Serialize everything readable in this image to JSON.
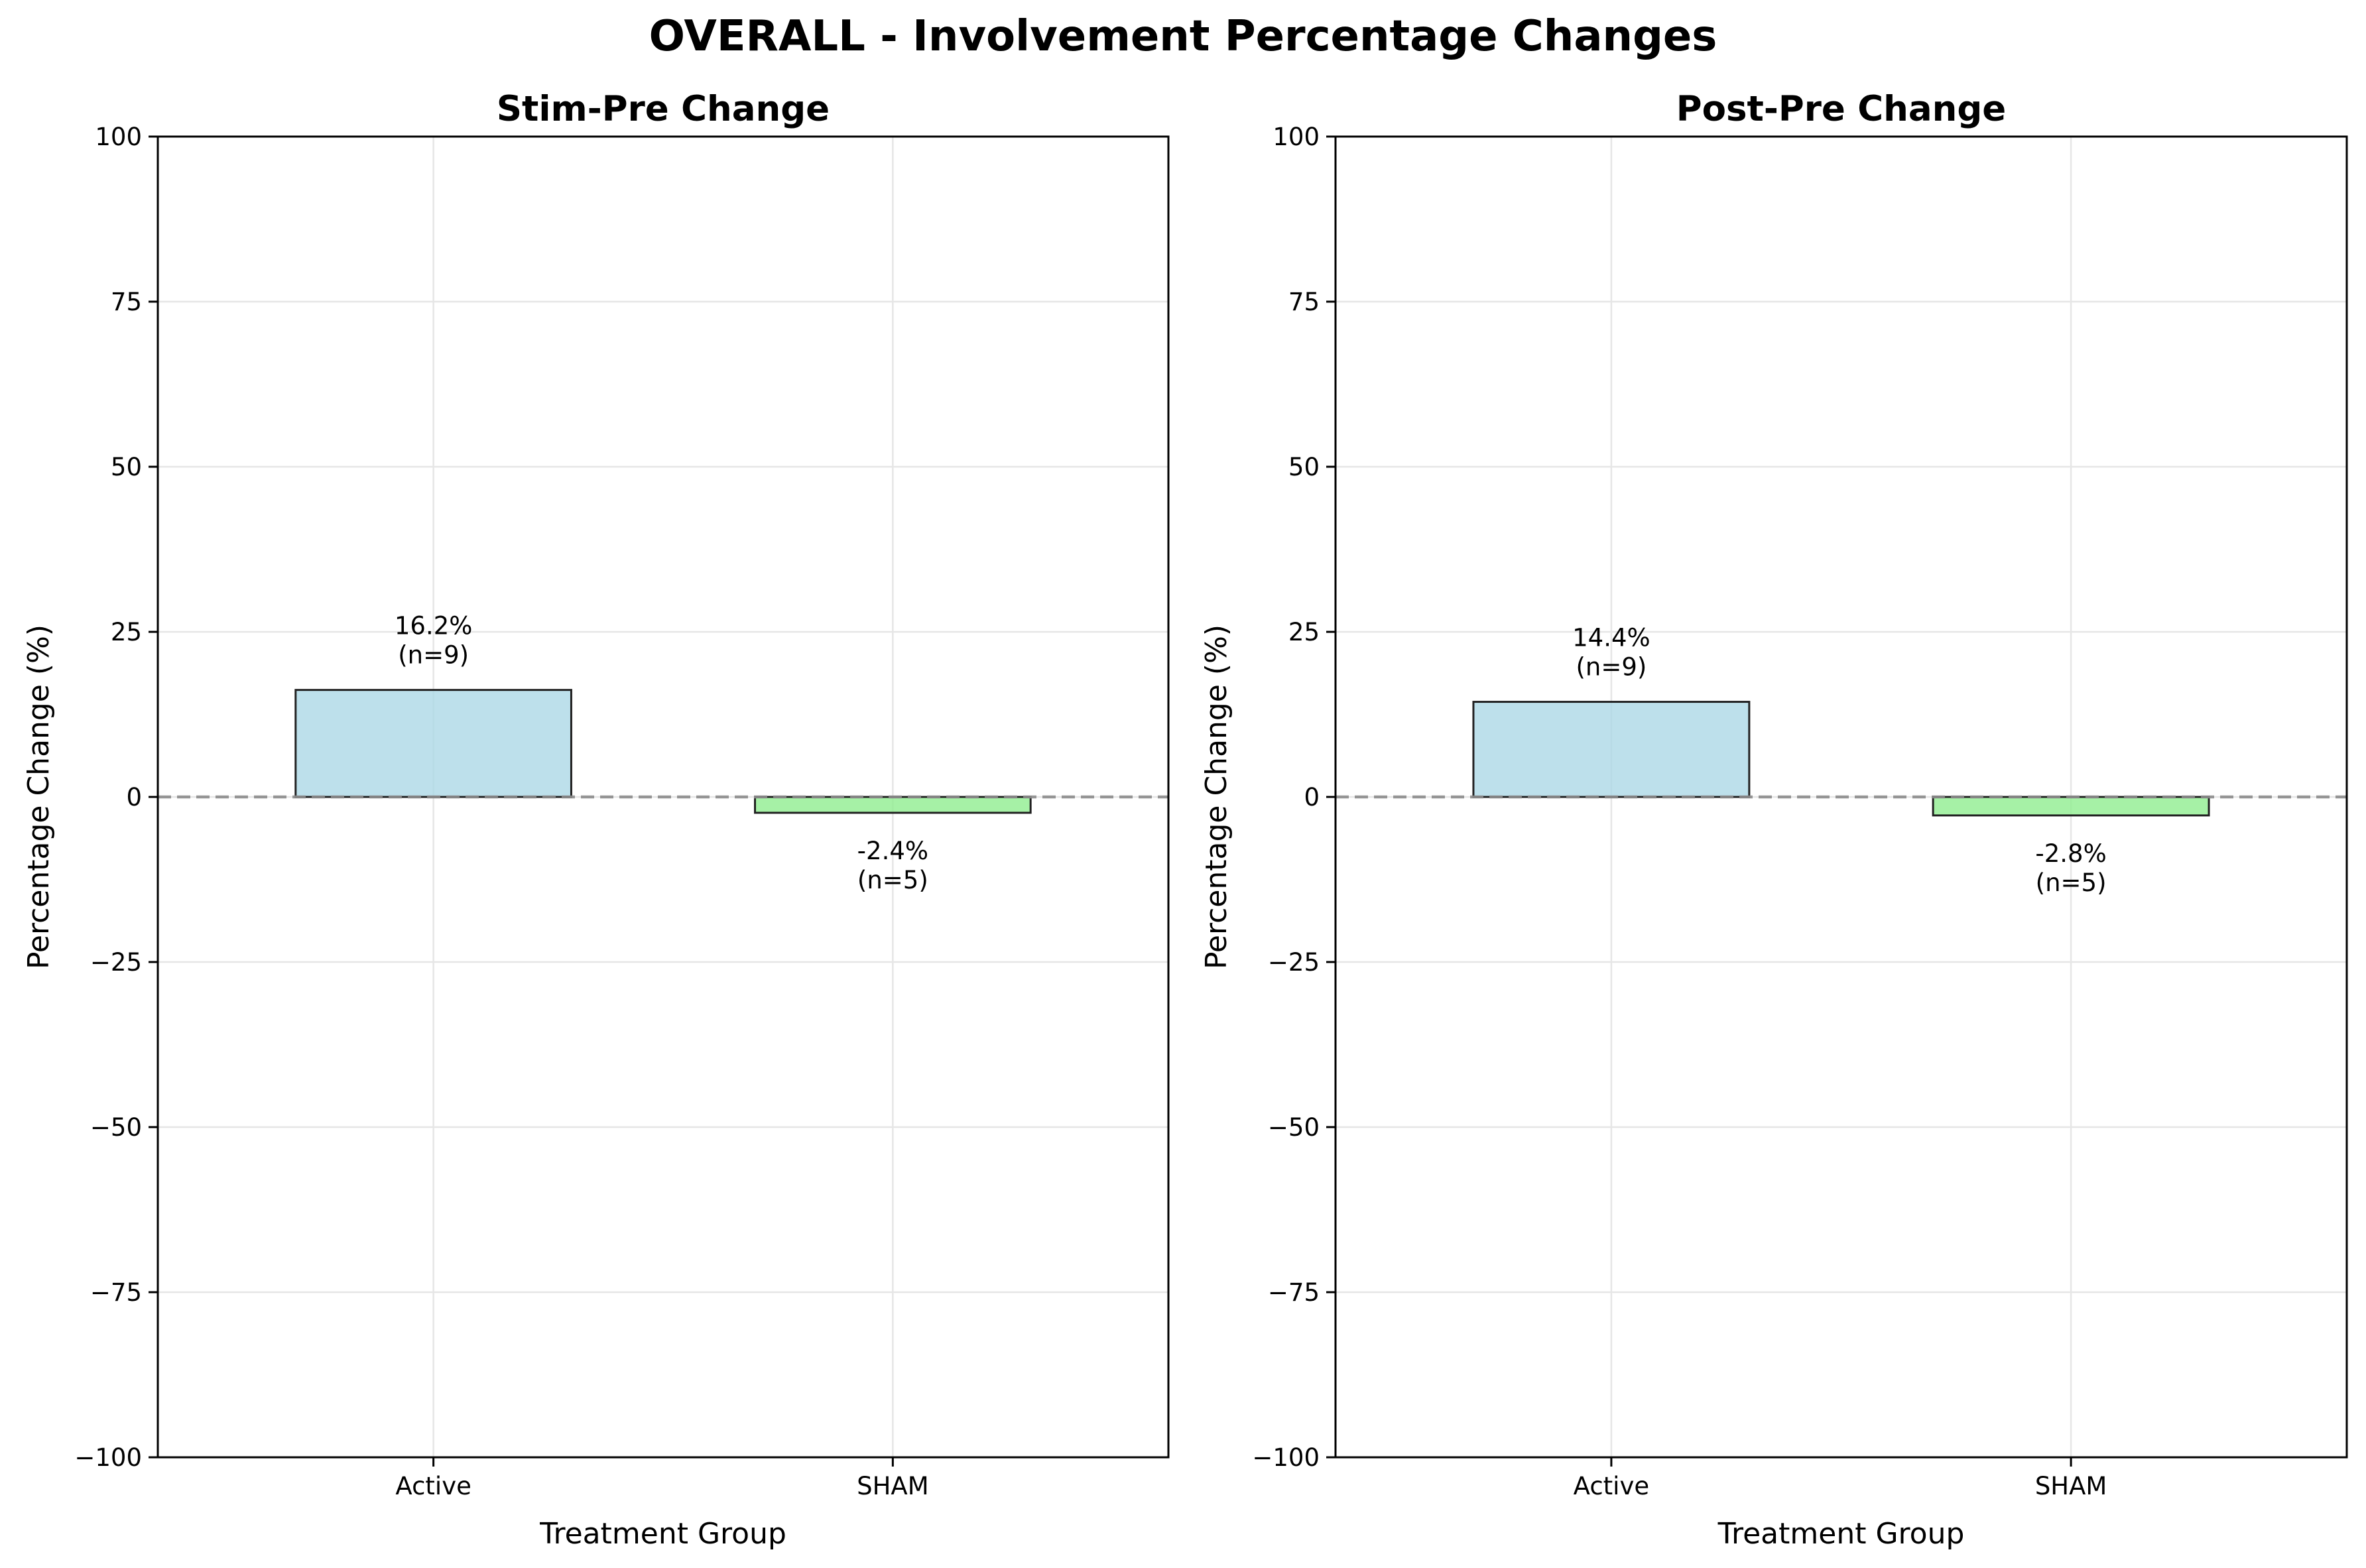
{
  "figure": {
    "suptitle": "OVERALL - Involvement Percentage Changes"
  },
  "chart_data": [
    {
      "type": "bar",
      "title": "Stim-Pre Change",
      "xlabel": "Treatment Group",
      "ylabel": "Percentage Change (%)",
      "categories": [
        "Active",
        "SHAM"
      ],
      "values": [
        16.2,
        -2.4
      ],
      "n": [
        9,
        5
      ],
      "value_labels": [
        "16.2%",
        "-2.4%"
      ],
      "n_labels": [
        "(n=9)",
        "(n=5)"
      ],
      "colors": [
        "#add8e6",
        "#90ee90"
      ],
      "ylim": [
        -100,
        100
      ],
      "yticks": [
        -100,
        -75,
        -50,
        -25,
        0,
        25,
        50,
        75,
        100
      ],
      "ytick_labels": [
        "−100",
        "−75",
        "−50",
        "−25",
        "0",
        "25",
        "50",
        "75",
        "100"
      ],
      "grid": true,
      "reference_line": 0
    },
    {
      "type": "bar",
      "title": "Post-Pre Change",
      "xlabel": "Treatment Group",
      "ylabel": "Percentage Change (%)",
      "categories": [
        "Active",
        "SHAM"
      ],
      "values": [
        14.4,
        -2.8
      ],
      "n": [
        9,
        5
      ],
      "value_labels": [
        "14.4%",
        "-2.8%"
      ],
      "n_labels": [
        "(n=9)",
        "(n=5)"
      ],
      "colors": [
        "#add8e6",
        "#90ee90"
      ],
      "ylim": [
        -100,
        100
      ],
      "yticks": [
        -100,
        -75,
        -50,
        -25,
        0,
        25,
        50,
        75,
        100
      ],
      "ytick_labels": [
        "−100",
        "−75",
        "−50",
        "−25",
        "0",
        "25",
        "50",
        "75",
        "100"
      ],
      "grid": true,
      "reference_line": 0
    }
  ]
}
